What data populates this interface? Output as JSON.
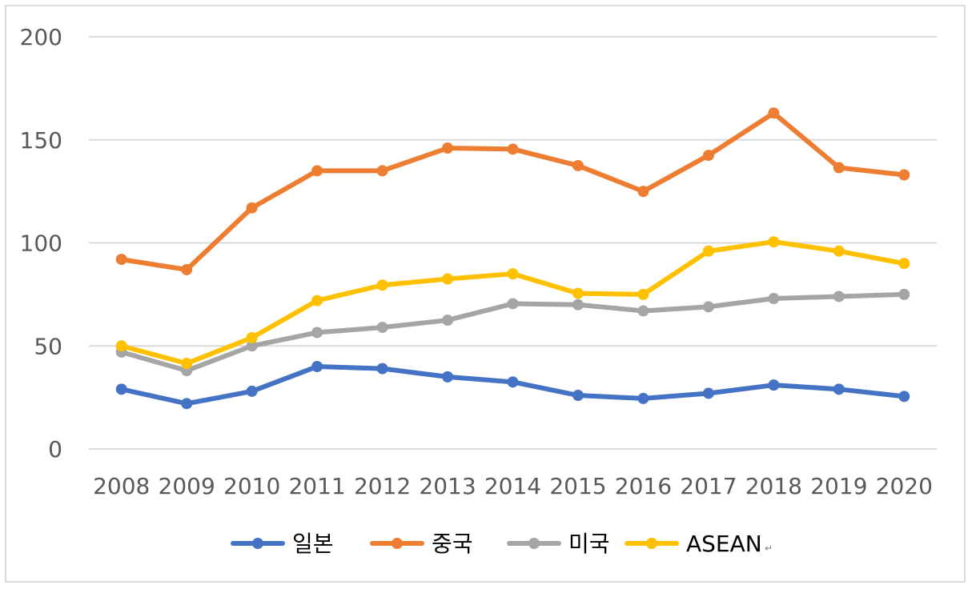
{
  "chart_data": {
    "type": "line",
    "title": "",
    "xlabel": "",
    "ylabel": "",
    "x": [
      "2008",
      "2009",
      "2010",
      "2011",
      "2012",
      "2013",
      "2014",
      "2015",
      "2016",
      "2017",
      "2018",
      "2019",
      "2020"
    ],
    "ylim": [
      0,
      200
    ],
    "yticks": [
      "0",
      "50",
      "100",
      "150",
      "200"
    ],
    "grid": true,
    "legend": "bottom",
    "series": [
      {
        "name": "일본",
        "color": "#4472c4",
        "values": [
          29,
          22,
          28,
          40,
          39,
          35,
          32.5,
          26,
          24.5,
          27,
          31,
          29,
          25.5
        ]
      },
      {
        "name": "중국",
        "color": "#ed7d31",
        "values": [
          92,
          87,
          117,
          135,
          135,
          146,
          145.5,
          137.5,
          125,
          142.5,
          163,
          136.5,
          133
        ]
      },
      {
        "name": "미국",
        "color": "#a5a5a5",
        "values": [
          47,
          38,
          50,
          56.5,
          59,
          62.5,
          70.5,
          70,
          67,
          69,
          73,
          74,
          75
        ]
      },
      {
        "name": "ASEAN",
        "color": "#ffc000",
        "values": [
          50,
          41.5,
          54,
          72,
          79.5,
          82.5,
          85,
          75.5,
          75,
          96,
          100.5,
          96,
          90
        ]
      }
    ],
    "legend_suffix": "↵"
  }
}
